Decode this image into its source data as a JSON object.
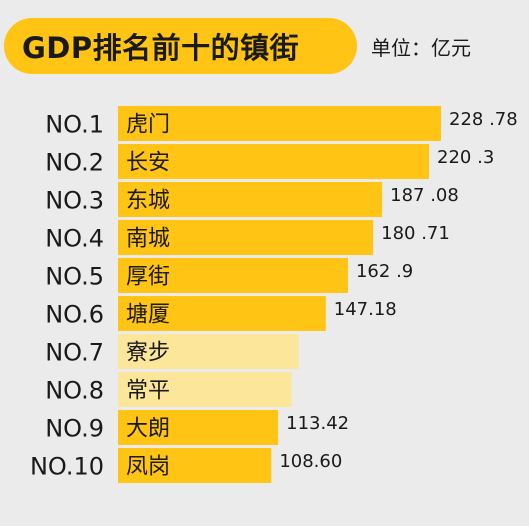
{
  "title": "GDP排名前十的镇街",
  "unit": "单位：亿元",
  "colors": {
    "bar": "#ffc414",
    "bar_faded": "#fbe69a",
    "background": "#ebebeb",
    "text": "#1a1a1a"
  },
  "chart_data": {
    "type": "bar",
    "orientation": "horizontal",
    "title": "GDP排名前十的镇街",
    "unit": "单位：亿元",
    "ranks": [
      "NO.1",
      "NO.2",
      "NO.3",
      "NO.4",
      "NO.5",
      "NO.6",
      "NO.7",
      "NO.8",
      "NO.9",
      "NO.10"
    ],
    "categories": [
      "虎门",
      "长安",
      "东城",
      "南城",
      "厚街",
      "塘厦",
      "寮步",
      "常平",
      "大朗",
      "凤岗"
    ],
    "values": [
      228.78,
      220.3,
      187.08,
      180.71,
      162.9,
      147.18,
      null,
      null,
      113.42,
      108.6
    ],
    "value_labels": [
      "228 .78",
      "220 .3",
      "187 .08",
      "180 .71",
      "162 .9",
      "147.18",
      "",
      "",
      "113.42",
      "108.60"
    ],
    "faded": [
      false,
      false,
      false,
      false,
      false,
      false,
      true,
      true,
      false,
      false
    ],
    "faded_widths_est": [
      128.0,
      123.0
    ],
    "xlim": [
      0,
      228.78
    ],
    "grid": false,
    "legend": "none"
  }
}
